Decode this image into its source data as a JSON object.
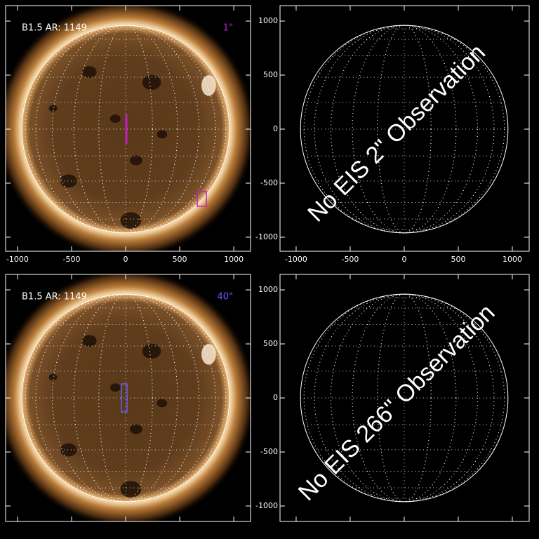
{
  "panels": [
    {
      "kind": "image",
      "label": "B1.5 AR: 1149",
      "scale_label": "1\"",
      "scale_color": "#c020c0",
      "marker": "line",
      "xlim": [
        -1110,
        1155
      ],
      "ylim": [
        -1130,
        1143
      ],
      "xticks": [
        -1000,
        -500,
        0,
        500,
        1000
      ],
      "yticks": [
        -1000,
        -500,
        0,
        500,
        1000
      ],
      "xtick_labels": true,
      "ytick_labels": false
    },
    {
      "kind": "empty",
      "message": "No EIS 2\" Observation",
      "xlim": [
        -1149,
        1156
      ],
      "ylim": [
        -1130,
        1143
      ],
      "xticks": [
        -1000,
        -500,
        0,
        500,
        1000
      ],
      "yticks": [
        -1000,
        -500,
        0,
        500,
        1000
      ],
      "xtick_labels": true,
      "ytick_labels": true
    },
    {
      "kind": "image",
      "label": "B1.5 AR: 1149",
      "scale_label": "40\"",
      "scale_color": "#6060ff",
      "marker": "box",
      "xlim": [
        -1110,
        1155
      ],
      "ylim": [
        -1143,
        1143
      ],
      "xticks": [
        -1000,
        -500,
        0,
        500,
        1000
      ],
      "yticks": [
        -1000,
        -500,
        0,
        500,
        1000
      ],
      "xtick_labels": false,
      "ytick_labels": false
    },
    {
      "kind": "empty",
      "message": "No EIS 266\" Observation",
      "xlim": [
        -1149,
        1156
      ],
      "ylim": [
        -1143,
        1143
      ],
      "xticks": [
        -1000,
        -500,
        0,
        500,
        1000
      ],
      "yticks": [
        -1000,
        -500,
        0,
        500,
        1000
      ],
      "xtick_labels": false,
      "ytick_labels": true
    }
  ]
}
